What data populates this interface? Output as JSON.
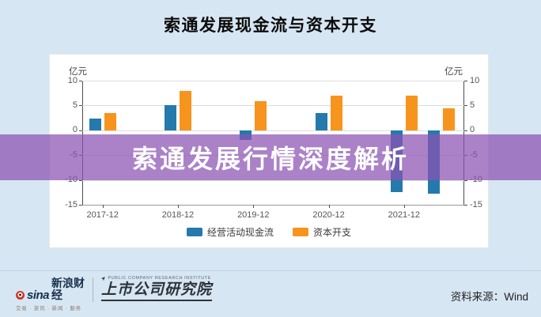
{
  "page": {
    "title": "索通发展现金流与资本开支",
    "background_color": "#d7e6f3"
  },
  "chart_data": {
    "type": "bar",
    "title": "索通发展现金流与资本开支",
    "unit_label": "亿元",
    "categories": [
      "2017-12",
      "2018-12",
      "2019-12",
      "2020-12",
      "2021-12",
      ""
    ],
    "x_numeric": [
      0,
      1,
      2,
      3,
      4,
      4.5
    ],
    "x_range": [
      -0.27,
      4.8
    ],
    "series": [
      {
        "name": "经营活动现金流",
        "color": "#2479ad",
        "values": [
          2.4,
          5.0,
          -2.0,
          3.5,
          -12.5,
          -12.8
        ]
      },
      {
        "name": "资本开支",
        "color": "#f7941e",
        "values": [
          3.4,
          8.0,
          5.8,
          6.9,
          7.0,
          4.5
        ]
      }
    ],
    "ylim": [
      -15,
      10
    ],
    "yticks": [
      10,
      5,
      0,
      -5,
      -10,
      -15
    ],
    "grid": true,
    "legend_position": "bottom",
    "y_axis_sides": "both"
  },
  "overlay": {
    "text": "索通发展行情深度解析",
    "color": "rgba(139,82,177,0.72)"
  },
  "footer": {
    "sina_word": "sina",
    "sina_brand": "新浪财经",
    "sina_tagline": "交易 · 资讯 · 新闻 · 服务",
    "institute_en": "PUBLIC COMPANY RESEARCH INSTITUTE",
    "institute_name": "上市公司研究院",
    "source": "资料来源：Wind"
  }
}
